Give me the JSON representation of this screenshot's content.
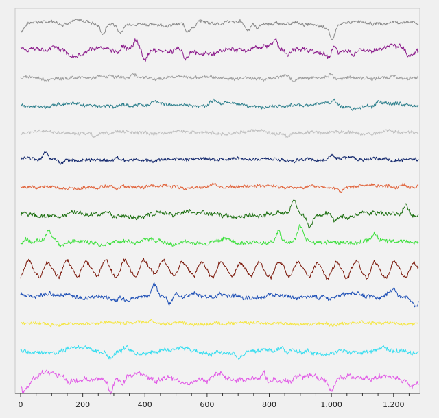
{
  "chart_data": {
    "type": "line",
    "title": "",
    "xlabel": "",
    "ylabel": "",
    "xlim": [
      0,
      1280
    ],
    "x_ticks": [
      0,
      200,
      400,
      600,
      800,
      1000,
      1200
    ],
    "x_tick_labels": [
      "0",
      "200",
      "400",
      "600",
      "800",
      "1.000",
      "1.200"
    ],
    "grid": false,
    "legend": "none",
    "series": [
      {
        "color": "#8a8a8a",
        "amplitude": 0.8,
        "noise": 0.25,
        "spikes": [
          [
            5,
            -1.6
          ],
          [
            265,
            -2.2
          ],
          [
            320,
            -1.4
          ],
          [
            535,
            -1.6
          ],
          [
            555,
            -1.0
          ],
          [
            730,
            -1.6
          ],
          [
            760,
            -1.2
          ],
          [
            1000,
            -2.0
          ],
          [
            1005,
            -1.2
          ]
        ]
      },
      {
        "color": "#8b1a8b",
        "amplitude": 1.3,
        "noise": 0.35,
        "spikes": [
          [
            330,
            1.2
          ],
          [
            370,
            2.0
          ],
          [
            400,
            -2.4
          ],
          [
            530,
            -1.4
          ],
          [
            820,
            1.8
          ],
          [
            860,
            -1.6
          ],
          [
            1010,
            1.6
          ],
          [
            1070,
            -1.2
          ],
          [
            1250,
            -1.0
          ]
        ]
      },
      {
        "color": "#9e9e9e",
        "amplitude": 0.6,
        "noise": 0.3,
        "spikes": [
          [
            360,
            0.8
          ],
          [
            880,
            -0.9
          ],
          [
            1000,
            1.0
          ]
        ]
      },
      {
        "color": "#2d7f8c",
        "amplitude": 0.7,
        "noise": 0.3,
        "spikes": [
          [
            430,
            0.6
          ],
          [
            620,
            0.7
          ],
          [
            1010,
            0.8
          ],
          [
            1150,
            0.8
          ]
        ]
      },
      {
        "color": "#c0c0c0",
        "amplitude": 0.5,
        "noise": 0.3,
        "spikes": [
          [
            240,
            -0.8
          ],
          [
            860,
            -0.6
          ]
        ]
      },
      {
        "color": "#10256b",
        "amplitude": 0.5,
        "noise": 0.3,
        "spikes": [
          [
            80,
            1.6
          ],
          [
            130,
            -1.0
          ],
          [
            310,
            0.8
          ],
          [
            1000,
            0.9
          ]
        ]
      },
      {
        "color": "#e1643c",
        "amplitude": 0.4,
        "noise": 0.3,
        "spikes": [
          [
            310,
            -0.7
          ],
          [
            620,
            0.6
          ],
          [
            1030,
            -0.8
          ],
          [
            1230,
            0.7
          ]
        ]
      },
      {
        "color": "#1c6f10",
        "amplitude": 0.9,
        "noise": 0.35,
        "spikes": [
          [
            300,
            -0.9
          ],
          [
            880,
            2.8
          ],
          [
            930,
            -2.2
          ],
          [
            1010,
            -1.2
          ],
          [
            1240,
            1.8
          ]
        ]
      },
      {
        "color": "#3de03d",
        "amplitude": 0.7,
        "noise": 0.35,
        "spikes": [
          [
            20,
            1.0
          ],
          [
            90,
            1.8
          ],
          [
            130,
            -1.0
          ],
          [
            830,
            2.4
          ],
          [
            900,
            2.8
          ],
          [
            1140,
            1.6
          ]
        ]
      },
      {
        "color": "#7a1608",
        "amplitude": 1.8,
        "noise": 0.3,
        "spikes": []
      },
      {
        "color": "#1d4fb6",
        "amplitude": 0.9,
        "noise": 0.35,
        "spikes": [
          [
            430,
            2.6
          ],
          [
            480,
            -1.6
          ],
          [
            1200,
            1.6
          ],
          [
            1270,
            -1.2
          ]
        ]
      },
      {
        "color": "#f5e642",
        "amplitude": 0.35,
        "noise": 0.3,
        "spikes": [
          [
            420,
            0.6
          ],
          [
            1000,
            -0.4
          ]
        ]
      },
      {
        "color": "#35ddf0",
        "amplitude": 1.0,
        "noise": 0.35,
        "spikes": [
          [
            290,
            -1.6
          ],
          [
            340,
            1.0
          ],
          [
            700,
            -1.0
          ],
          [
            860,
            -0.8
          ]
        ]
      },
      {
        "color": "#e15ae6",
        "amplitude": 1.4,
        "noise": 0.4,
        "spikes": [
          [
            10,
            -1.6
          ],
          [
            290,
            -2.2
          ],
          [
            330,
            -1.4
          ],
          [
            600,
            -1.0
          ],
          [
            780,
            1.6
          ],
          [
            1000,
            -1.8
          ],
          [
            1260,
            -0.8
          ]
        ]
      }
    ]
  }
}
